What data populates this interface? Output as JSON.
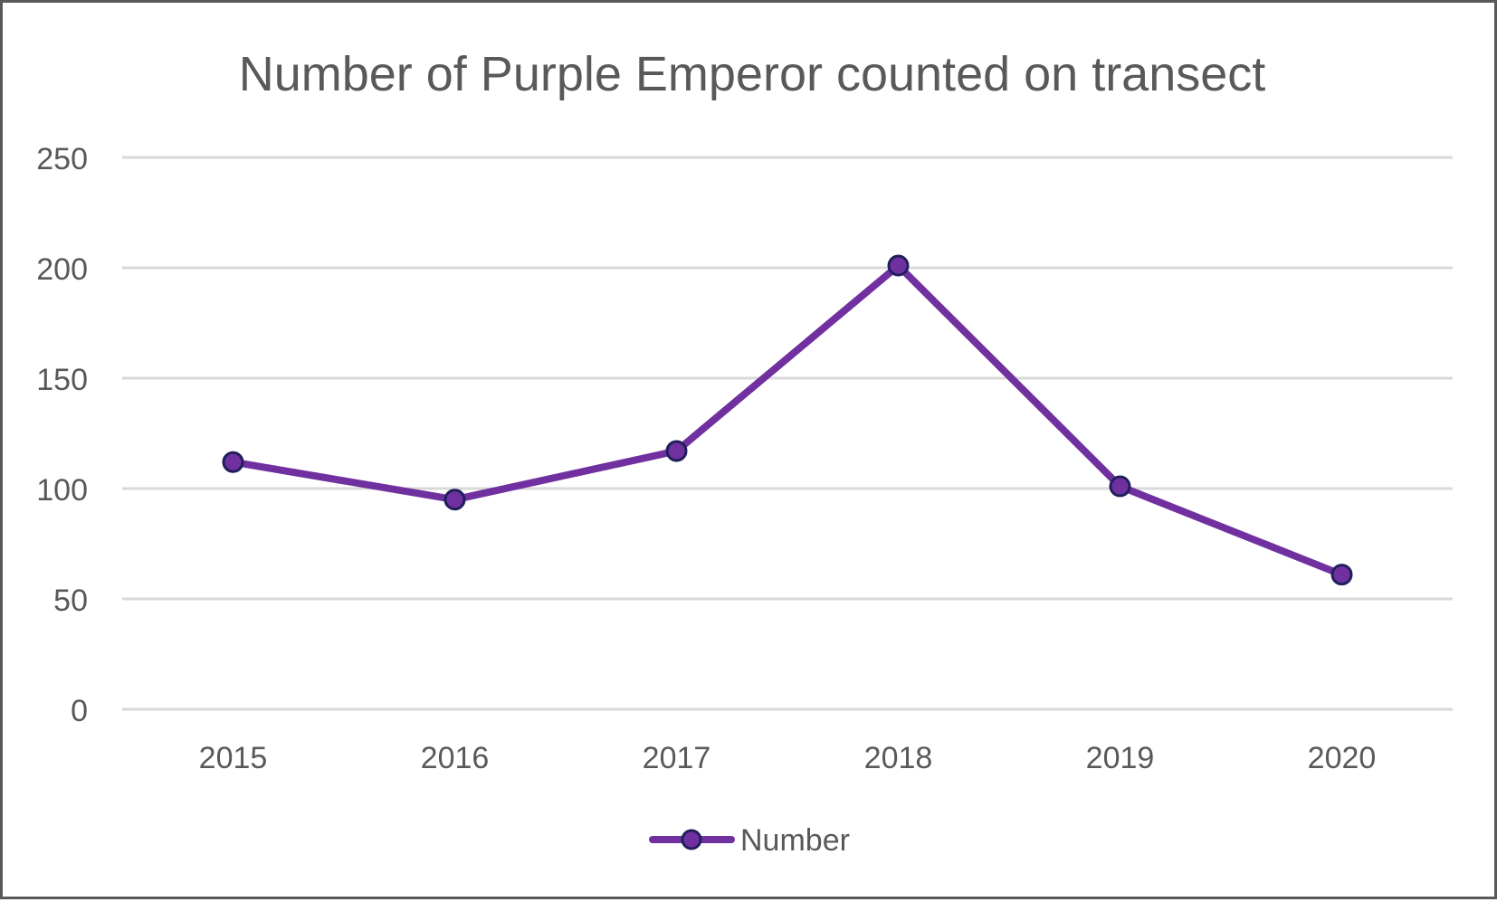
{
  "chart_data": {
    "type": "line",
    "title": "Number of Purple Emperor counted on transect",
    "xlabel": "",
    "ylabel": "",
    "categories": [
      "2015",
      "2016",
      "2017",
      "2018",
      "2019",
      "2020"
    ],
    "series": [
      {
        "name": "Number",
        "values": [
          112,
          95,
          117,
          201,
          101,
          61
        ],
        "color": "#7030a0",
        "marker_fill": "#7030a0",
        "marker_edge": "#1f1f5c"
      }
    ],
    "ylim": [
      0,
      250
    ],
    "y_ticks": [
      "0",
      "50",
      "100",
      "150",
      "200",
      "250"
    ],
    "y_tick_values": [
      0,
      50,
      100,
      150,
      200,
      250
    ],
    "grid": true,
    "legend_position": "bottom"
  },
  "colors": {
    "text": "#595959",
    "gridline": "#d9d9d9",
    "border": "#595959",
    "background": "#ffffff"
  }
}
